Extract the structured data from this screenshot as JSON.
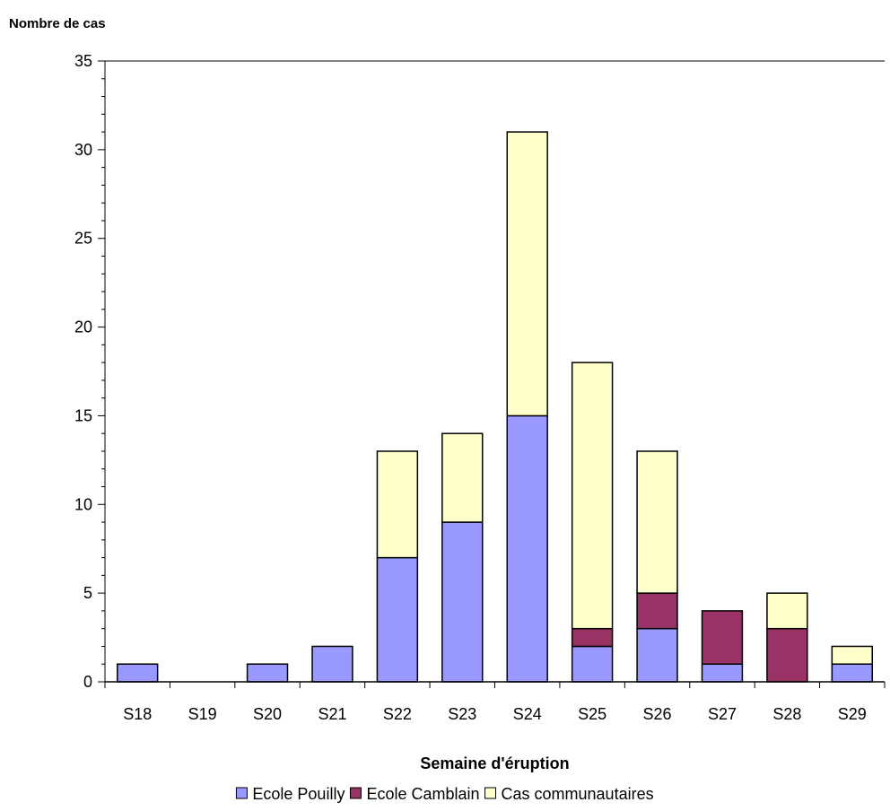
{
  "chart_data": {
    "type": "bar",
    "stacked": true,
    "title": "",
    "ylabel": "Nombre de cas",
    "xlabel": "Semaine d'éruption",
    "categories": [
      "S18",
      "S19",
      "S20",
      "S21",
      "S22",
      "S23",
      "S24",
      "S25",
      "S26",
      "S27",
      "S28",
      "S29"
    ],
    "series": [
      {
        "name": "Ecole Pouilly",
        "color": "#9999ff",
        "values": [
          1,
          0,
          1,
          2,
          7,
          9,
          15,
          2,
          3,
          1,
          0,
          1
        ]
      },
      {
        "name": "Ecole Camblain",
        "color": "#993366",
        "values": [
          0,
          0,
          0,
          0,
          0,
          0,
          0,
          1,
          2,
          3,
          3,
          0
        ]
      },
      {
        "name": "Cas communautaires",
        "color": "#ffffcc",
        "values": [
          0,
          0,
          0,
          0,
          6,
          5,
          16,
          15,
          8,
          0,
          2,
          1
        ]
      }
    ],
    "ylim": [
      0,
      35
    ],
    "yticks": [
      0,
      5,
      10,
      15,
      20,
      25,
      30,
      35
    ],
    "minor_tick_step": 1,
    "grid": false,
    "legend_position": "bottom"
  }
}
